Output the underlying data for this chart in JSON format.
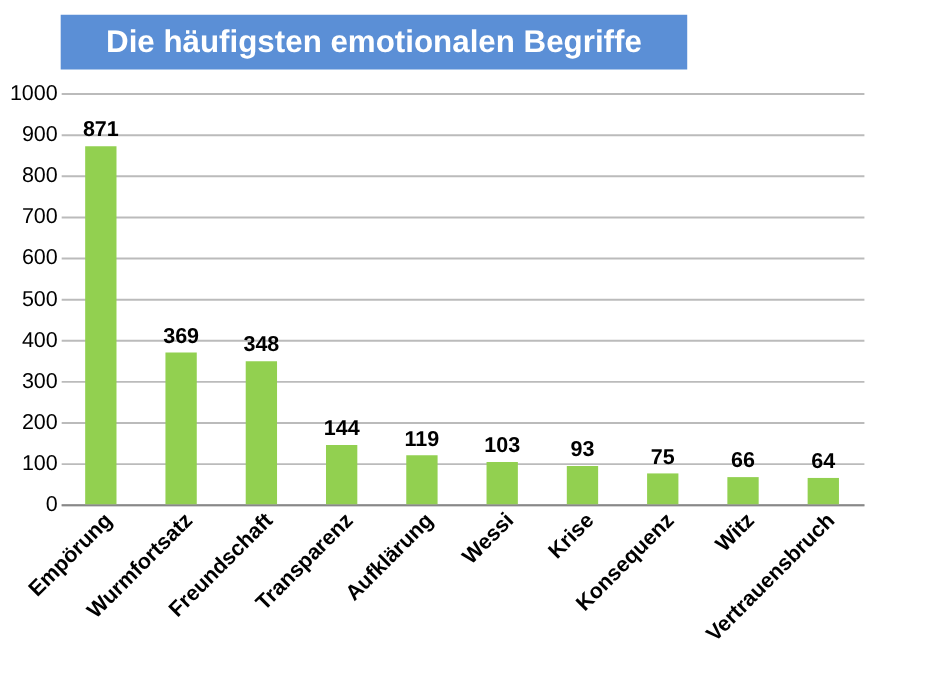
{
  "chart_data": {
    "type": "bar",
    "title": "Die häufigsten emotionalen Begriffe",
    "categories": [
      "Empörung",
      "Wurmfortsatz",
      "Freundschaft",
      "Transparenz",
      "Aufklärung",
      "Wessi",
      "Krise",
      "Konsequenz",
      "Witz",
      "Vertrauensbruch"
    ],
    "values": [
      871,
      369,
      348,
      144,
      119,
      103,
      93,
      75,
      66,
      64
    ],
    "color": "#92d050",
    "ylim": [
      0,
      1000
    ],
    "yticks": [
      0,
      100,
      200,
      300,
      400,
      500,
      600,
      700,
      800,
      900,
      1000
    ],
    "grid": "y",
    "data_labels": true
  }
}
